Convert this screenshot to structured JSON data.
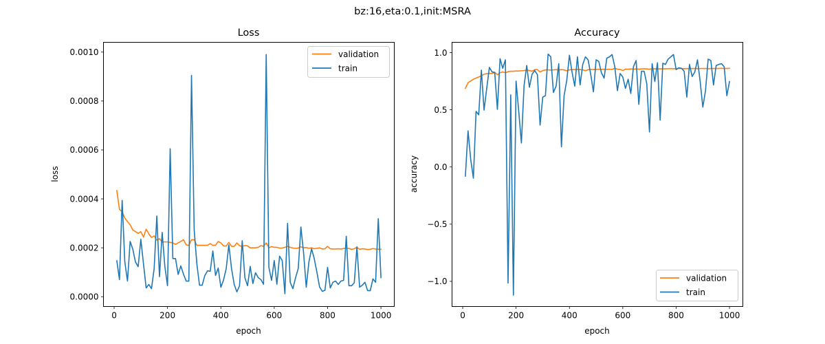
{
  "suptitle": "bz:16,eta:0.1,init:MSRA",
  "colors": {
    "validation": "#ff7f0e",
    "train": "#1f77b4"
  },
  "chart_data": [
    {
      "type": "line",
      "title": "Loss",
      "xlabel": "epoch",
      "ylabel": "loss",
      "xlim": [
        -40,
        1050
      ],
      "ylim": [
        -4e-05,
        0.00104
      ],
      "xticks": [
        0,
        200,
        400,
        600,
        800,
        1000
      ],
      "xtick_labels": [
        "0",
        "200",
        "400",
        "600",
        "800",
        "1000"
      ],
      "yticks": [
        0.0,
        0.0002,
        0.0004,
        0.0006,
        0.0008,
        0.001
      ],
      "ytick_labels": [
        "0.0000",
        "0.0002",
        "0.0004",
        "0.0006",
        "0.0008",
        "0.0010"
      ],
      "legend": {
        "placement": "top-right",
        "entries": [
          "validation",
          "train"
        ]
      },
      "grid": false,
      "x": [
        10,
        20,
        30,
        40,
        50,
        60,
        70,
        80,
        90,
        100,
        110,
        120,
        130,
        140,
        150,
        160,
        170,
        180,
        190,
        200,
        210,
        220,
        230,
        240,
        250,
        260,
        270,
        280,
        290,
        300,
        310,
        320,
        330,
        340,
        350,
        360,
        370,
        380,
        390,
        400,
        410,
        420,
        430,
        440,
        450,
        460,
        470,
        480,
        490,
        500,
        510,
        520,
        530,
        540,
        550,
        560,
        570,
        580,
        590,
        600,
        610,
        620,
        630,
        640,
        650,
        660,
        670,
        680,
        690,
        700,
        710,
        720,
        730,
        740,
        750,
        760,
        770,
        780,
        790,
        800,
        810,
        820,
        830,
        840,
        850,
        860,
        870,
        880,
        890,
        900,
        910,
        920,
        930,
        940,
        950,
        960,
        970,
        980,
        990,
        1000
      ],
      "series": [
        {
          "name": "validation",
          "values": [
            0.000434,
            0.000357,
            0.000347,
            0.000322,
            0.000307,
            0.000294,
            0.000273,
            0.000266,
            0.000259,
            0.000266,
            0.000244,
            0.000276,
            0.000257,
            0.000242,
            0.000249,
            0.000231,
            0.000237,
            0.000224,
            0.000224,
            0.000224,
            0.000222,
            0.00022,
            0.000214,
            0.00022,
            0.000226,
            0.000233,
            0.000212,
            0.00021,
            0.000233,
            0.000233,
            0.00021,
            0.00021,
            0.00021,
            0.00021,
            0.00021,
            0.000217,
            0.00021,
            0.00021,
            0.000226,
            0.00022,
            0.000208,
            0.000207,
            0.000222,
            0.000206,
            0.000206,
            0.00022,
            0.000208,
            0.000206,
            0.000209,
            0.000208,
            0.0002,
            0.0002,
            0.0002,
            0.000202,
            0.000209,
            0.000206,
            0.00022,
            0.0002,
            0.000205,
            0.000202,
            0.000202,
            0.000199,
            0.000199,
            0.000202,
            0.000206,
            0.000202,
            0.000199,
            0.000198,
            0.000199,
            0.000204,
            0.0002,
            0.000201,
            0.000198,
            0.0002,
            0.000196,
            0.000198,
            0.0002,
            0.000195,
            0.000196,
            0.000206,
            0.000196,
            0.000195,
            0.000195,
            0.000196,
            0.000195,
            0.000197,
            0.000199,
            0.000197,
            0.000194,
            0.000196,
            0.000202,
            0.000194,
            0.000196,
            0.000195,
            0.000193,
            0.000194,
            0.000197,
            0.000195,
            0.000194,
            0.000194
          ]
        },
        {
          "name": "train",
          "values": [
            0.000147,
            7e-05,
            0.000394,
            0.000142,
            6.4e-05,
            0.000226,
            0.000194,
            0.000142,
            0.000123,
            0.000235,
            0.000134,
            3.6e-05,
            5e-05,
            3.3e-05,
            0.000115,
            0.00033,
            8.2e-05,
            0.000263,
            0.000124,
            4.5e-05,
            0.000605,
            0.000156,
            0.000156,
            9.1e-05,
            0.000126,
            9.2e-05,
            6.4e-05,
            6.4e-05,
            0.000905,
            0.000273,
            0.000134,
            4.7e-05,
            4.7e-05,
            8.7e-05,
            0.000106,
            0.000104,
            0.000187,
            8.7e-05,
            0.000117,
            3.9e-05,
            6.8e-05,
            0.000115,
            0.000212,
            0.000115,
            5e-05,
            2e-05,
            4.5e-05,
            0.000229,
            7.8e-05,
            4.5e-05,
            0.000124,
            5.4e-05,
            9.8e-05,
            7.8e-05,
            7e-05,
            5.1e-05,
            0.00099,
            0.00012,
            6.7e-05,
            0.000148,
            5.1e-05,
            0.000166,
            0.000148,
            1.2e-05,
            0.0003,
            5.9e-05,
            3.3e-05,
            7.8e-05,
            0.000115,
            0.000285,
            0.00018,
            3.9e-05,
            0.000142,
            0.000196,
            0.000156,
            0.0001,
            4e-05,
            2.2e-05,
            2.6e-05,
            0.00012,
            3.6e-05,
            5.9e-05,
            6.4e-05,
            5e-05,
            6.4e-05,
            6.7e-05,
            0.000247,
            4.5e-05,
            4.5e-05,
            5.7e-05,
            0.000204,
            3.9e-05,
            4.7e-05,
            5.9e-05,
            2.5e-05,
            2.5e-05,
            7.3e-05,
            5.9e-05,
            0.000319,
            7.8e-05
          ]
        }
      ]
    },
    {
      "type": "line",
      "title": "Accuracy",
      "xlabel": "epoch",
      "ylabel": "accuracy",
      "xlim": [
        -40,
        1050
      ],
      "ylim": [
        -1.22,
        1.09
      ],
      "xticks": [
        0,
        200,
        400,
        600,
        800,
        1000
      ],
      "xtick_labels": [
        "0",
        "200",
        "400",
        "600",
        "800",
        "1000"
      ],
      "yticks": [
        -1.0,
        -0.5,
        0.0,
        0.5,
        1.0
      ],
      "ytick_labels": [
        "−1.0",
        "−0.5",
        "0.0",
        "0.5",
        "1.0"
      ],
      "legend": {
        "placement": "bottom-right",
        "entries": [
          "validation",
          "train"
        ]
      },
      "grid": false,
      "x": [
        10,
        20,
        30,
        40,
        50,
        60,
        70,
        80,
        90,
        100,
        110,
        120,
        130,
        140,
        150,
        160,
        170,
        180,
        190,
        200,
        210,
        220,
        230,
        240,
        250,
        260,
        270,
        280,
        290,
        300,
        310,
        320,
        330,
        340,
        350,
        360,
        370,
        380,
        390,
        400,
        410,
        420,
        430,
        440,
        450,
        460,
        470,
        480,
        490,
        500,
        510,
        520,
        530,
        540,
        550,
        560,
        570,
        580,
        590,
        600,
        610,
        620,
        630,
        640,
        650,
        660,
        670,
        680,
        690,
        700,
        710,
        720,
        730,
        740,
        750,
        760,
        770,
        780,
        790,
        800,
        810,
        820,
        830,
        840,
        850,
        860,
        870,
        880,
        890,
        900,
        910,
        920,
        930,
        940,
        950,
        960,
        970,
        980,
        990,
        1000
      ],
      "series": [
        {
          "name": "validation",
          "values": [
            0.687,
            0.737,
            0.751,
            0.767,
            0.777,
            0.787,
            0.797,
            0.811,
            0.815,
            0.819,
            0.817,
            0.827,
            0.807,
            0.823,
            0.831,
            0.823,
            0.833,
            0.837,
            0.837,
            0.839,
            0.839,
            0.841,
            0.843,
            0.847,
            0.843,
            0.837,
            0.851,
            0.851,
            0.831,
            0.843,
            0.849,
            0.849,
            0.847,
            0.849,
            0.851,
            0.849,
            0.851,
            0.849,
            0.841,
            0.849,
            0.851,
            0.851,
            0.853,
            0.851,
            0.849,
            0.841,
            0.851,
            0.853,
            0.851,
            0.853,
            0.855,
            0.853,
            0.855,
            0.853,
            0.855,
            0.853,
            0.863,
            0.855,
            0.853,
            0.843,
            0.855,
            0.855,
            0.857,
            0.855,
            0.857,
            0.855,
            0.857,
            0.859,
            0.857,
            0.855,
            0.857,
            0.859,
            0.857,
            0.859,
            0.857,
            0.859,
            0.859,
            0.861,
            0.859,
            0.859,
            0.861,
            0.861,
            0.859,
            0.861,
            0.859,
            0.861,
            0.861,
            0.859,
            0.861,
            0.861,
            0.861,
            0.859,
            0.861,
            0.861,
            0.861,
            0.861,
            0.863,
            0.861,
            0.861,
            0.863
          ]
        },
        {
          "name": "train",
          "values": [
            -0.08,
            0.316,
            0.066,
            -0.098,
            0.486,
            0.456,
            0.847,
            0.497,
            0.687,
            0.871,
            0.831,
            0.827,
            0.503,
            0.947,
            0.863,
            0.937,
            -1.015,
            0.631,
            -1.121,
            0.751,
            0.486,
            0.21,
            0.711,
            0.887,
            0.697,
            0.811,
            0.843,
            0.807,
            0.366,
            0.611,
            0.623,
            0.987,
            0.963,
            0.651,
            0.707,
            0.903,
            0.176,
            0.623,
            0.757,
            0.977,
            0.827,
            0.707,
            0.963,
            0.717,
            0.897,
            0.963,
            0.937,
            0.807,
            0.657,
            0.937,
            0.923,
            0.823,
            0.777,
            0.951,
            0.963,
            0.983,
            0.877,
            0.667,
            0.817,
            0.787,
            0.687,
            0.767,
            0.643,
            0.877,
            0.931,
            0.547,
            0.837,
            0.837,
            0.727,
            0.306,
            0.903,
            0.747,
            0.911,
            0.41,
            0.907,
            0.897,
            0.943,
            0.963,
            0.983,
            0.851,
            0.867,
            0.863,
            0.837,
            0.611,
            0.897,
            0.791,
            0.831,
            0.937,
            0.747,
            0.523,
            0.667,
            0.943,
            0.931,
            0.717,
            0.887,
            0.897,
            0.903,
            0.877,
            0.623,
            0.747
          ]
        }
      ]
    }
  ]
}
